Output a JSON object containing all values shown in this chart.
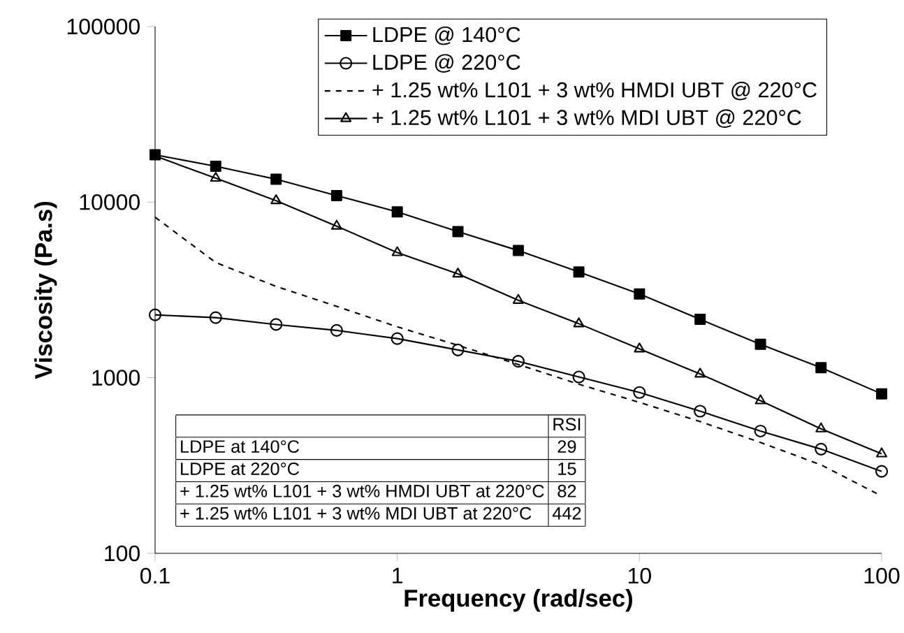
{
  "chart_data": {
    "type": "line",
    "xlabel": "Frequency (rad/sec)",
    "ylabel": "Viscosity (Pa.s)",
    "x": [
      0.1,
      0.178,
      0.316,
      0.562,
      1,
      1.78,
      3.16,
      5.62,
      10,
      17.8,
      31.6,
      56.2,
      100
    ],
    "series": [
      {
        "name": "LDPE @ 140°C",
        "color": "#000000",
        "marker": "square",
        "line_style": "solid",
        "values": [
          18600,
          16000,
          13500,
          10900,
          8800,
          6800,
          5300,
          4000,
          3000,
          2150,
          1550,
          1140,
          810
        ]
      },
      {
        "name": "LDPE @ 220°C",
        "color": "#000000",
        "marker": "circle",
        "line_style": "solid",
        "values": [
          2280,
          2200,
          2010,
          1860,
          1670,
          1440,
          1240,
          1010,
          824,
          645,
          497,
          392,
          293
        ]
      },
      {
        "name": "+ 1.25 wt% L101 + 3 wt% HMDI UBT @ 220°C",
        "color": "#000000",
        "marker": "none",
        "line_style": "dashed",
        "values": [
          8210,
          4530,
          3310,
          2550,
          1950,
          1530,
          1190,
          918,
          724,
          563,
          428,
          319,
          212
        ]
      },
      {
        "name": "+ 1.25 wt% L101 + 3 wt% MDI UBT @ 220°C",
        "color": "#000000",
        "marker": "triangle",
        "line_style": "solid",
        "values": [
          18300,
          13700,
          10200,
          7300,
          5160,
          3900,
          2760,
          2030,
          1460,
          1050,
          740,
          512,
          369
        ]
      }
    ],
    "log": "xy",
    "xlim": [
      0.1,
      100
    ],
    "ylim": [
      100,
      100000
    ],
    "xticks": [
      0.1,
      1,
      10,
      100
    ],
    "yticks": [
      100,
      1000,
      10000,
      100000
    ],
    "grid": false,
    "legend": "top right",
    "annotations": [
      "RSI",
      "LDPE at 140°C",
      "29",
      "LDPE at 220°C",
      "15",
      "+ 1.25 wt% L101 + 3 wt% HMDI UBT at 220°C",
      "82",
      "+ 1.25 wt% L101 + 3 wt% MDI UBT at 220°C",
      "442"
    ]
  }
}
